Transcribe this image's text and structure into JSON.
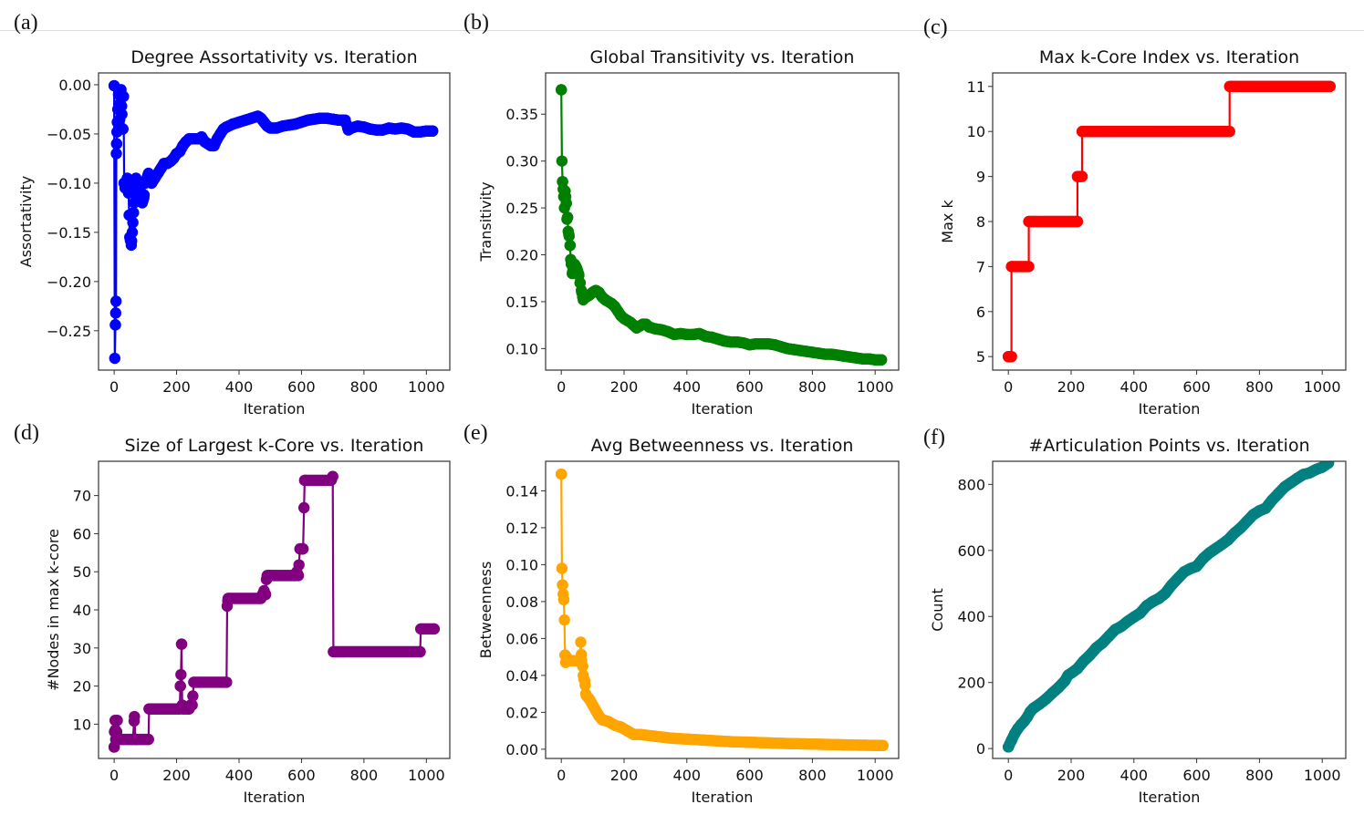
{
  "panels": [
    {
      "id": "a",
      "label": "(a)"
    },
    {
      "id": "b",
      "label": "(b)"
    },
    {
      "id": "c",
      "label": "(c)"
    },
    {
      "id": "d",
      "label": "(d)"
    },
    {
      "id": "e",
      "label": "(e)"
    },
    {
      "id": "f",
      "label": "(f)"
    }
  ],
  "chart_data": [
    {
      "id": "a",
      "type": "line",
      "title": "Degree Assortativity vs. Iteration",
      "xlabel": "Iteration",
      "ylabel": "Assortativity",
      "color": "#0000ff",
      "xlim": [
        -50,
        1075
      ],
      "ylim": [
        -0.29,
        0.012
      ],
      "xticks": [
        0,
        200,
        400,
        600,
        800,
        1000
      ],
      "yticks": [
        0.0,
        -0.05,
        -0.1,
        -0.15,
        -0.2,
        -0.25
      ],
      "ytick_labels": [
        "0.00",
        "−0.05",
        "−0.10",
        "−0.15",
        "−0.20",
        "−0.25"
      ],
      "x": [
        0,
        2,
        4,
        5,
        6,
        7,
        8,
        9,
        10,
        12,
        14,
        16,
        18,
        20,
        22,
        25,
        28,
        30,
        32,
        35,
        38,
        42,
        46,
        50,
        55,
        58,
        62,
        66,
        70,
        75,
        80,
        85,
        90,
        95,
        100,
        105,
        110,
        120,
        130,
        140,
        150,
        160,
        170,
        180,
        190,
        200,
        210,
        220,
        230,
        240,
        250,
        260,
        270,
        280,
        290,
        300,
        310,
        320,
        330,
        340,
        350,
        360,
        380,
        400,
        420,
        440,
        460,
        470,
        480,
        490,
        500,
        520,
        540,
        560,
        580,
        600,
        620,
        640,
        660,
        680,
        700,
        720,
        740,
        750,
        760,
        780,
        800,
        820,
        840,
        860,
        880,
        900,
        920,
        940,
        960,
        980,
        1000,
        1020
      ],
      "y": [
        -0.001,
        -0.278,
        -0.244,
        -0.232,
        -0.22,
        -0.07,
        -0.06,
        -0.048,
        -0.038,
        -0.025,
        -0.01,
        -0.02,
        -0.035,
        -0.045,
        -0.005,
        -0.03,
        -0.045,
        -0.012,
        -0.1,
        -0.105,
        -0.1,
        -0.095,
        -0.11,
        -0.155,
        -0.163,
        -0.15,
        -0.13,
        -0.11,
        -0.095,
        -0.1,
        -0.105,
        -0.11,
        -0.12,
        -0.115,
        -0.1,
        -0.095,
        -0.09,
        -0.1,
        -0.095,
        -0.09,
        -0.085,
        -0.08,
        -0.08,
        -0.078,
        -0.075,
        -0.07,
        -0.068,
        -0.062,
        -0.058,
        -0.055,
        -0.055,
        -0.055,
        -0.055,
        -0.053,
        -0.058,
        -0.06,
        -0.062,
        -0.062,
        -0.055,
        -0.05,
        -0.045,
        -0.043,
        -0.04,
        -0.038,
        -0.036,
        -0.034,
        -0.032,
        -0.034,
        -0.038,
        -0.042,
        -0.044,
        -0.044,
        -0.042,
        -0.041,
        -0.04,
        -0.038,
        -0.036,
        -0.035,
        -0.034,
        -0.034,
        -0.035,
        -0.036,
        -0.036,
        -0.046,
        -0.044,
        -0.042,
        -0.043,
        -0.045,
        -0.046,
        -0.046,
        -0.044,
        -0.045,
        -0.044,
        -0.045,
        -0.048,
        -0.048,
        -0.047,
        -0.047
      ]
    },
    {
      "id": "b",
      "type": "line",
      "title": "Global Transitivity vs. Iteration",
      "xlabel": "Iteration",
      "ylabel": "Transitivity",
      "color": "#008000",
      "xlim": [
        -50,
        1075
      ],
      "ylim": [
        0.077,
        0.394
      ],
      "xticks": [
        0,
        200,
        400,
        600,
        800,
        1000
      ],
      "yticks": [
        0.35,
        0.3,
        0.25,
        0.2,
        0.15,
        0.1
      ],
      "ytick_labels": [
        "0.35",
        "0.30",
        "0.25",
        "0.20",
        "0.15",
        "0.10"
      ],
      "x": [
        0,
        2,
        4,
        6,
        8,
        10,
        12,
        14,
        16,
        18,
        20,
        22,
        25,
        28,
        30,
        32,
        35,
        38,
        42,
        46,
        50,
        55,
        60,
        65,
        70,
        75,
        80,
        90,
        100,
        110,
        120,
        130,
        140,
        150,
        160,
        170,
        180,
        190,
        200,
        210,
        220,
        230,
        240,
        250,
        260,
        270,
        280,
        300,
        320,
        340,
        360,
        380,
        400,
        420,
        440,
        460,
        480,
        500,
        520,
        540,
        560,
        580,
        600,
        620,
        640,
        660,
        680,
        700,
        720,
        740,
        760,
        780,
        800,
        820,
        840,
        860,
        880,
        900,
        920,
        940,
        960,
        980,
        1000,
        1020
      ],
      "y": [
        0.376,
        0.3,
        0.278,
        0.27,
        0.262,
        0.25,
        0.268,
        0.262,
        0.255,
        0.238,
        0.24,
        0.225,
        0.22,
        0.21,
        0.195,
        0.19,
        0.18,
        0.185,
        0.19,
        0.188,
        0.185,
        0.18,
        0.17,
        0.16,
        0.152,
        0.155,
        0.155,
        0.157,
        0.16,
        0.162,
        0.16,
        0.155,
        0.152,
        0.15,
        0.148,
        0.145,
        0.14,
        0.135,
        0.132,
        0.13,
        0.128,
        0.125,
        0.122,
        0.124,
        0.126,
        0.126,
        0.123,
        0.121,
        0.12,
        0.118,
        0.115,
        0.116,
        0.115,
        0.115,
        0.116,
        0.113,
        0.112,
        0.11,
        0.108,
        0.107,
        0.107,
        0.106,
        0.104,
        0.105,
        0.105,
        0.105,
        0.104,
        0.102,
        0.1,
        0.099,
        0.098,
        0.097,
        0.096,
        0.095,
        0.094,
        0.094,
        0.093,
        0.092,
        0.091,
        0.09,
        0.089,
        0.089,
        0.088,
        0.088
      ]
    },
    {
      "id": "c",
      "type": "line",
      "title": "Max k-Core Index vs. Iteration",
      "xlabel": "Iteration",
      "ylabel": "Max k",
      "color": "#ff0000",
      "xlim": [
        -50,
        1075
      ],
      "ylim": [
        4.7,
        11.3
      ],
      "xticks": [
        0,
        200,
        400,
        600,
        800,
        1000
      ],
      "yticks": [
        11,
        10,
        9,
        8,
        7,
        6,
        5
      ],
      "ytick_labels": [
        "11",
        "10",
        "9",
        "8",
        "7",
        "6",
        "5"
      ],
      "segments": [
        {
          "x0": 0,
          "x1": 10,
          "y": 5
        },
        {
          "x0": 10,
          "x1": 65,
          "y": 7
        },
        {
          "x0": 65,
          "x1": 220,
          "y": 8
        },
        {
          "x0": 220,
          "x1": 235,
          "y": 9
        },
        {
          "x0": 235,
          "x1": 705,
          "y": 10
        },
        {
          "x0": 705,
          "x1": 1025,
          "y": 11
        }
      ]
    },
    {
      "id": "d",
      "type": "line",
      "title": "Size of Largest k-Core vs. Iteration",
      "xlabel": "Iteration",
      "ylabel": "#Nodes in max k-core",
      "color": "#800080",
      "xlim": [
        -50,
        1075
      ],
      "ylim": [
        1,
        79
      ],
      "xticks": [
        0,
        200,
        400,
        600,
        800,
        1000
      ],
      "yticks": [
        70,
        60,
        50,
        40,
        30,
        20,
        10
      ],
      "ytick_labels": [
        "70",
        "60",
        "50",
        "40",
        "30",
        "20",
        "10"
      ],
      "x": [
        0,
        1,
        3,
        5,
        8,
        10,
        12,
        15,
        60,
        65,
        68,
        70,
        110,
        112,
        210,
        212,
        214,
        216,
        218,
        220,
        240,
        245,
        250,
        255,
        360,
        362,
        365,
        368,
        470,
        475,
        480,
        485,
        488,
        490,
        495,
        500,
        580,
        585,
        590,
        595,
        600,
        605,
        610,
        612,
        690,
        695,
        700,
        702,
        980,
        982,
        1025
      ],
      "y": [
        4,
        8,
        11,
        6,
        8,
        11,
        6,
        6,
        6,
        12,
        6,
        6,
        6,
        14,
        14,
        20,
        23,
        31,
        15,
        14,
        14,
        15,
        15,
        21,
        21,
        41,
        43,
        43,
        43,
        44,
        45,
        44,
        48,
        49,
        49,
        49,
        49,
        50,
        49,
        56,
        56,
        56,
        74,
        74,
        74,
        74,
        75,
        29,
        29,
        35,
        35
      ]
    },
    {
      "id": "e",
      "type": "line",
      "title": "Avg Betweenness vs. Iteration",
      "xlabel": "Iteration",
      "ylabel": "Betweenness",
      "color": "#ffa500",
      "xlim": [
        -50,
        1075
      ],
      "ylim": [
        -0.005,
        0.156
      ],
      "xticks": [
        0,
        200,
        400,
        600,
        800,
        1000
      ],
      "yticks": [
        0.14,
        0.12,
        0.1,
        0.08,
        0.06,
        0.04,
        0.02,
        0.0
      ],
      "ytick_labels": [
        "0.14",
        "0.12",
        "0.10",
        "0.08",
        "0.06",
        "0.04",
        "0.02",
        "0.00"
      ],
      "x": [
        0,
        2,
        4,
        6,
        8,
        10,
        12,
        14,
        16,
        20,
        25,
        30,
        40,
        50,
        60,
        62,
        65,
        68,
        70,
        72,
        75,
        78,
        80,
        90,
        100,
        110,
        120,
        130,
        150,
        170,
        190,
        210,
        230,
        250,
        300,
        350,
        400,
        450,
        500,
        550,
        600,
        650,
        700,
        750,
        800,
        850,
        900,
        950,
        1000,
        1025
      ],
      "y": [
        0.149,
        0.098,
        0.089,
        0.084,
        0.081,
        0.07,
        0.051,
        0.047,
        0.05,
        0.049,
        0.048,
        0.048,
        0.048,
        0.048,
        0.048,
        0.058,
        0.048,
        0.045,
        0.04,
        0.038,
        0.037,
        0.03,
        0.029,
        0.027,
        0.024,
        0.021,
        0.018,
        0.016,
        0.015,
        0.013,
        0.012,
        0.01,
        0.008,
        0.008,
        0.007,
        0.006,
        0.0055,
        0.005,
        0.0045,
        0.004,
        0.0038,
        0.0035,
        0.0032,
        0.003,
        0.0028,
        0.0026,
        0.0024,
        0.0022,
        0.0021,
        0.002
      ]
    },
    {
      "id": "f",
      "type": "line",
      "title": "#Articulation Points vs. Iteration",
      "xlabel": "Iteration",
      "ylabel": "Count",
      "color": "#008080",
      "xlim": [
        -50,
        1075
      ],
      "ylim": [
        -30,
        870
      ],
      "xticks": [
        0,
        200,
        400,
        600,
        800,
        1000
      ],
      "yticks": [
        800,
        600,
        400,
        200,
        0
      ],
      "ytick_labels": [
        "800",
        "600",
        "400",
        "200",
        "0"
      ],
      "x": [
        0,
        10,
        20,
        30,
        40,
        50,
        60,
        70,
        80,
        100,
        120,
        140,
        160,
        180,
        190,
        200,
        220,
        240,
        260,
        280,
        300,
        320,
        340,
        360,
        380,
        400,
        420,
        440,
        460,
        480,
        500,
        520,
        540,
        560,
        580,
        600,
        620,
        640,
        660,
        680,
        700,
        720,
        740,
        760,
        780,
        800,
        820,
        840,
        860,
        880,
        900,
        920,
        940,
        960,
        980,
        1000,
        1020
      ],
      "y": [
        5,
        25,
        45,
        60,
        72,
        82,
        95,
        112,
        122,
        135,
        150,
        168,
        185,
        205,
        222,
        228,
        242,
        265,
        283,
        305,
        320,
        340,
        360,
        370,
        385,
        398,
        410,
        432,
        445,
        455,
        470,
        495,
        515,
        535,
        545,
        552,
        575,
        592,
        605,
        618,
        632,
        652,
        668,
        688,
        708,
        720,
        728,
        752,
        772,
        792,
        805,
        818,
        830,
        835,
        845,
        852,
        865
      ]
    }
  ]
}
